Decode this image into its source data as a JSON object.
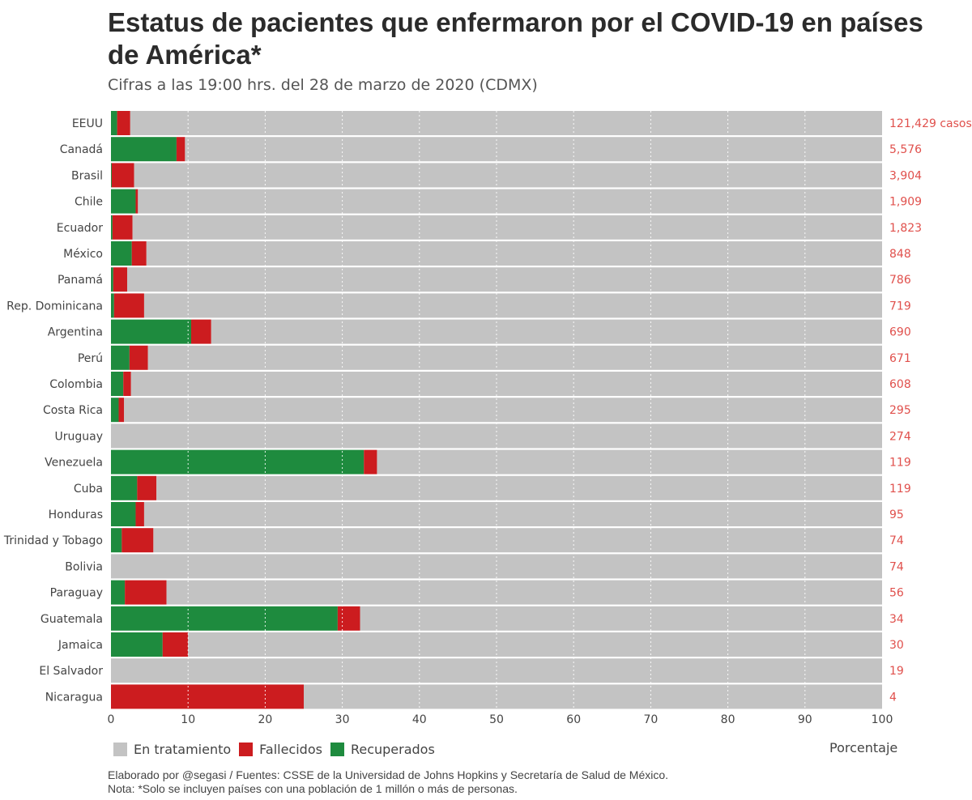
{
  "chart_data": {
    "type": "bar",
    "orientation": "horizontal",
    "stacked": true,
    "title": "Estatus de pacientes que enfermaron por el COVID-19 en países de América*",
    "subtitle": "Cifras a las 19:00 hrs. del 28 de marzo de 2020 (CDMX)",
    "xlabel": "Porcentaje",
    "xlim": [
      0,
      100
    ],
    "xticks": [
      "0",
      "10",
      "20",
      "30",
      "40",
      "50",
      "60",
      "70",
      "80",
      "90",
      "100"
    ],
    "grid": true,
    "legend_position": "bottom-left",
    "categories": [
      "EEUU",
      "Canadá",
      "Brasil",
      "Chile",
      "Ecuador",
      "México",
      "Panamá",
      "Rep. Dominicana",
      "Argentina",
      "Perú",
      "Colombia",
      "Costa Rica",
      "Uruguay",
      "Venezuela",
      "Cuba",
      "Honduras",
      "Trinidad y Tobago",
      "Bolivia",
      "Paraguay",
      "Guatemala",
      "Jamaica",
      "El Salvador",
      "Nicaragua"
    ],
    "cases_labels": [
      "121,429 casos",
      "5,576",
      "3,904",
      "1,909",
      "1,823",
      "848",
      "786",
      "719",
      "690",
      "671",
      "608",
      "295",
      "274",
      "119",
      "119",
      "95",
      "74",
      "74",
      "56",
      "34",
      "30",
      "19",
      "4"
    ],
    "series": [
      {
        "name": "Recuperados",
        "color": "#1e8b3e",
        "values": [
          0.8,
          8.5,
          0.1,
          3.2,
          0.2,
          2.7,
          0.3,
          0.4,
          10.4,
          2.4,
          1.6,
          1.0,
          0,
          32.8,
          3.4,
          3.2,
          1.4,
          0,
          1.8,
          29.4,
          6.7,
          0,
          0
        ]
      },
      {
        "name": "Fallecidos",
        "color": "#cc1c1f",
        "values": [
          1.7,
          1.1,
          2.9,
          0.3,
          2.6,
          1.9,
          1.8,
          3.9,
          2.6,
          2.4,
          1.0,
          0.7,
          0,
          1.7,
          2.5,
          1.1,
          4.1,
          0,
          5.4,
          2.9,
          3.3,
          0,
          25.0
        ]
      },
      {
        "name": "En tratamiento",
        "color": "#c3c3c3",
        "values": [
          97.5,
          90.4,
          97.0,
          96.5,
          97.2,
          95.4,
          97.9,
          95.7,
          87.0,
          95.2,
          97.4,
          98.3,
          100,
          65.5,
          94.1,
          95.7,
          94.5,
          100,
          92.8,
          67.7,
          90.0,
          100,
          75.0
        ]
      }
    ],
    "legend_order": [
      "En tratamiento",
      "Fallecidos",
      "Recuperados"
    ],
    "label_color": "#e0504c"
  },
  "footer": {
    "line1": "Elaborado por @segasi / Fuentes: CSSE de la Universidad de Johns Hopkins y Secretaría de Salud de México.",
    "line2": "Nota: *Solo se incluyen países con una población de 1 millón o más de personas."
  }
}
